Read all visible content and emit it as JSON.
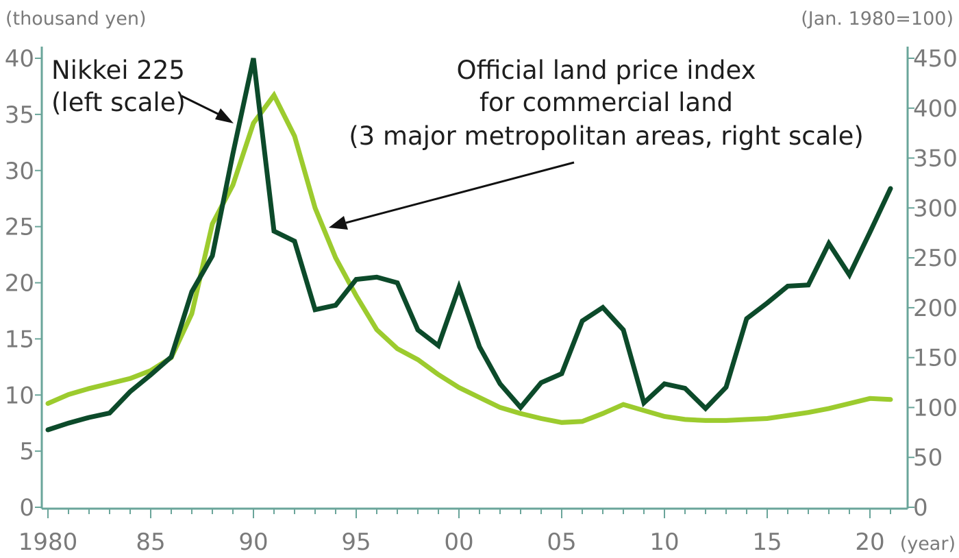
{
  "chart_data": {
    "type": "line",
    "left_unit": "(thousand yen)",
    "right_unit": "(Jan. 1980=100)",
    "x_unit": "(year)",
    "x": [
      1980,
      1981,
      1982,
      1983,
      1984,
      1985,
      1986,
      1987,
      1988,
      1989,
      1990,
      1991,
      1992,
      1993,
      1994,
      1995,
      1996,
      1997,
      1998,
      1999,
      2000,
      2001,
      2002,
      2003,
      2004,
      2005,
      2006,
      2007,
      2008,
      2009,
      2010,
      2011,
      2012,
      2013,
      2014,
      2015,
      2016,
      2017,
      2018,
      2019,
      2020,
      2021
    ],
    "x_ticks": [
      {
        "value": 1980,
        "label": "1980"
      },
      {
        "value": 1985,
        "label": "85"
      },
      {
        "value": 1990,
        "label": "90"
      },
      {
        "value": 1995,
        "label": "95"
      },
      {
        "value": 2000,
        "label": "00"
      },
      {
        "value": 2005,
        "label": "05"
      },
      {
        "value": 2010,
        "label": "10"
      },
      {
        "value": 2015,
        "label": "15"
      },
      {
        "value": 2020,
        "label": "20"
      }
    ],
    "x_range": [
      1980,
      2021
    ],
    "y_left": {
      "ticks": [
        0,
        5,
        10,
        15,
        20,
        25,
        30,
        35,
        40
      ],
      "range": [
        0,
        40
      ]
    },
    "y_right": {
      "ticks": [
        0,
        50,
        100,
        150,
        200,
        250,
        300,
        350,
        400,
        450
      ],
      "range": [
        0,
        450
      ]
    },
    "grid": false,
    "series": [
      {
        "name": "Nikkei 225 (left scale)",
        "axis": "left",
        "color": "#0c4a2a",
        "values": [
          6.9,
          7.5,
          8.0,
          8.4,
          10.3,
          11.8,
          13.4,
          19.2,
          22.4,
          31.5,
          40.0,
          24.6,
          23.7,
          17.6,
          18.0,
          20.3,
          20.5,
          20.0,
          15.8,
          14.4,
          19.6,
          14.3,
          11.0,
          8.9,
          11.1,
          11.9,
          16.6,
          17.8,
          15.8,
          9.3,
          11.0,
          10.6,
          8.8,
          10.7,
          16.8,
          18.2,
          19.7,
          19.8,
          23.5,
          20.7,
          24.5,
          28.4
        ]
      },
      {
        "name": "Official land price index for commercial land (3 major metropolitan areas, right scale)",
        "axis": "right",
        "color": "#9ccb2e",
        "values": [
          104,
          113,
          119,
          124,
          129,
          137,
          150,
          194,
          284,
          323,
          385,
          413,
          372,
          300,
          250,
          212,
          178,
          159,
          148,
          133,
          120,
          110,
          100,
          94,
          89,
          85,
          86,
          94,
          103,
          97,
          91,
          88,
          87,
          87,
          88,
          89,
          92,
          95,
          99,
          104,
          109,
          108
        ]
      }
    ],
    "annotations": [
      {
        "lines": [
          "Nikkei 225",
          "(left scale)"
        ],
        "points_to": "Nikkei 225 (left scale)"
      },
      {
        "lines": [
          "Official land price index",
          "for commercial land",
          "(3 major metropolitan areas, right scale)"
        ],
        "points_to": "Official land price index for commercial land (3 major metropolitan areas, right scale)"
      }
    ]
  }
}
